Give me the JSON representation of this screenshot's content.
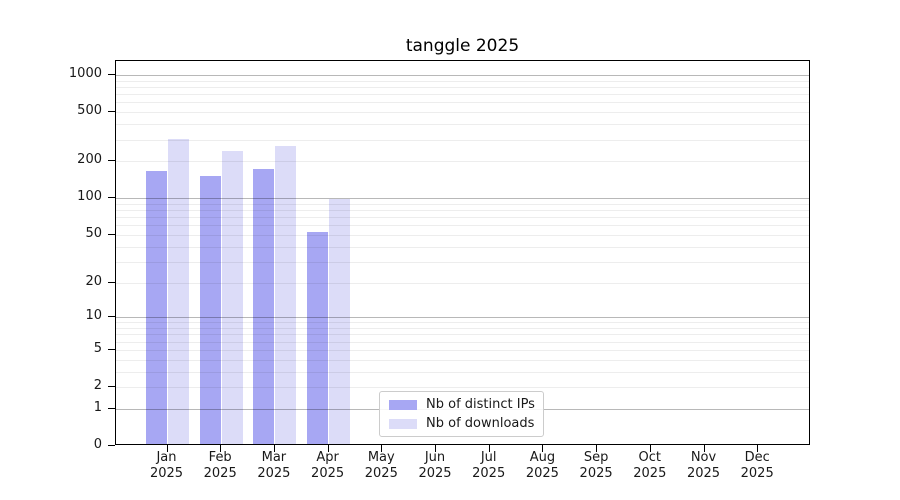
{
  "chart_data": {
    "type": "bar",
    "title": "tanggle 2025",
    "x_tick_year": "2025",
    "categories": [
      "Jan",
      "Feb",
      "Mar",
      "Apr",
      "May",
      "Jun",
      "Jul",
      "Aug",
      "Sep",
      "Oct",
      "Nov",
      "Dec"
    ],
    "series": [
      {
        "name": "Nb of distinct IPs",
        "color": "#a7a7f3",
        "values": [
          160,
          145,
          168,
          51,
          0,
          0,
          0,
          0,
          0,
          0,
          0,
          0
        ]
      },
      {
        "name": "Nb of downloads",
        "color": "#dcdcf8",
        "values": [
          290,
          235,
          258,
          95,
          0,
          0,
          0,
          0,
          0,
          0,
          0,
          0
        ]
      }
    ],
    "y_axis": {
      "scale": "log1p",
      "ticks": [
        0,
        1,
        2,
        5,
        10,
        20,
        50,
        100,
        200,
        500,
        1000
      ],
      "major_gridlines": [
        1,
        10,
        100,
        1000
      ],
      "minor_gridlines": [
        2,
        3,
        4,
        5,
        6,
        7,
        8,
        9,
        20,
        30,
        40,
        50,
        60,
        70,
        80,
        90,
        200,
        300,
        400,
        500,
        600,
        700,
        800,
        900
      ],
      "ymin": 0,
      "ymax": 1280
    },
    "xlabel": "",
    "ylabel": "",
    "grid": true,
    "legend_position": "lower-center"
  },
  "colors": {
    "major_grid": "rgba(0,0,0,0.28)",
    "minor_grid": "rgba(0,0,0,0.07)",
    "spine": "#000000"
  }
}
